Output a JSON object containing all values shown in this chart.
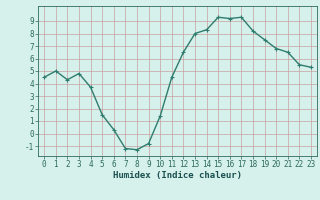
{
  "x": [
    0,
    1,
    2,
    3,
    4,
    5,
    6,
    7,
    8,
    9,
    10,
    11,
    12,
    13,
    14,
    15,
    16,
    17,
    18,
    19,
    20,
    21,
    22,
    23
  ],
  "y": [
    4.5,
    5.0,
    4.3,
    4.8,
    3.7,
    1.5,
    0.3,
    -1.2,
    -1.3,
    -0.8,
    1.4,
    4.5,
    6.5,
    8.0,
    8.3,
    9.3,
    9.2,
    9.3,
    8.2,
    7.5,
    6.8,
    6.5,
    5.5,
    5.3
  ],
  "line_color": "#2e7d6e",
  "marker": "+",
  "marker_size": 3.5,
  "line_width": 1.0,
  "xlabel": "Humidex (Indice chaleur)",
  "xlim": [
    -0.5,
    23.5
  ],
  "ylim": [
    -1.8,
    10.2
  ],
  "yticks": [
    -1,
    0,
    1,
    2,
    3,
    4,
    5,
    6,
    7,
    8,
    9
  ],
  "xticks": [
    0,
    1,
    2,
    3,
    4,
    5,
    6,
    7,
    8,
    9,
    10,
    11,
    12,
    13,
    14,
    15,
    16,
    17,
    18,
    19,
    20,
    21,
    22,
    23
  ],
  "bg_color": "#d6f0eb",
  "grid_color": "#c8a0a0",
  "tick_color": "#2e6b5e",
  "xlabel_color": "#1a5050",
  "tick_fontsize": 5.5,
  "label_fontsize": 6.5
}
